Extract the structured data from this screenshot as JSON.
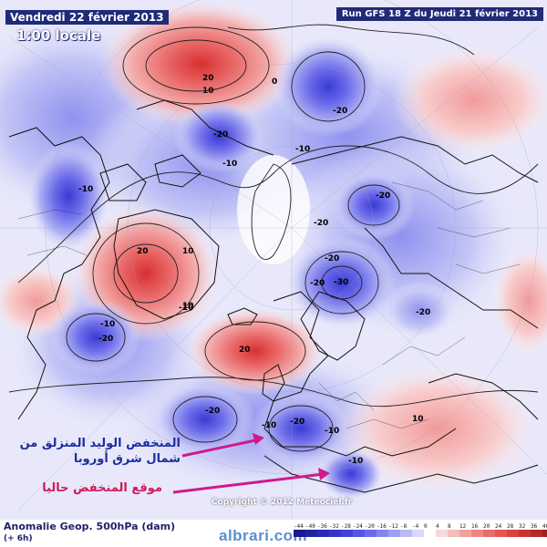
{
  "header": {
    "date": "Vendredi 22 février 2013",
    "time": "1:00 locale",
    "run": "Run GFS 18 Z du Jeudi 21 février 2013"
  },
  "footer": {
    "title": "Anomalie Geop. 500hPa (dam)",
    "subtitle": "(+ 6h)"
  },
  "copyright": "Copyright © 2012 Meteociel.fr",
  "watermark": "albrari.com",
  "annotations": {
    "new_low": "المنخفض الوليد المنزلق من شمال شرق أوروبا",
    "current_low": "موقع المنخفض حاليا",
    "new_low_color": "#1d2ea0",
    "current_low_color": "#d01a5a"
  },
  "legend": {
    "ticks": [
      "-44",
      "-40",
      "-36",
      "-32",
      "-28",
      "-24",
      "-20",
      "-16",
      "-12",
      "-8",
      "-4",
      "0",
      "4",
      "8",
      "12",
      "16",
      "20",
      "24",
      "28",
      "32",
      "36",
      "40"
    ],
    "colors": [
      "#1a1a8a",
      "#22229e",
      "#2a2ab4",
      "#3434c8",
      "#4242d8",
      "#5555e2",
      "#6a6aea",
      "#8585ee",
      "#a0a0f2",
      "#bcbcf5",
      "#d8d8f8",
      "#ffffff",
      "#f8d8d8",
      "#f5bcbc",
      "#f2a0a0",
      "#ee8585",
      "#ea6a6a",
      "#e25555",
      "#d84242",
      "#c83434",
      "#b42a2a",
      "#9e2222"
    ]
  },
  "contour_labels": [
    {
      "name": "pacific-high-label",
      "text": "20",
      "kind": "pos"
    },
    {
      "name": "pacific-high-label-2",
      "text": "10",
      "kind": "pos"
    },
    {
      "name": "north-zero-label",
      "text": "0",
      "kind": "zero"
    },
    {
      "name": "siberia-low-label",
      "text": "-20",
      "kind": "neg"
    },
    {
      "name": "alaska-low-label",
      "text": "-20",
      "kind": "neg"
    },
    {
      "name": "alaska-low-label-2",
      "text": "-10",
      "kind": "neg"
    },
    {
      "name": "arctic-low-label",
      "text": "-10",
      "kind": "neg"
    },
    {
      "name": "canada-low-label",
      "text": "-10",
      "kind": "neg"
    },
    {
      "name": "scandi-low-label",
      "text": "-20",
      "kind": "neg"
    },
    {
      "name": "scandi-low-label-2",
      "text": "-20",
      "kind": "neg"
    },
    {
      "name": "russia-low-label",
      "text": "-20",
      "kind": "neg"
    },
    {
      "name": "russia-low-center",
      "text": "-30",
      "kind": "neg"
    },
    {
      "name": "russia-low-label-2",
      "text": "-20",
      "kind": "neg"
    },
    {
      "name": "greenland-high-label",
      "text": "20",
      "kind": "pos"
    },
    {
      "name": "greenland-high-label-2",
      "text": "10",
      "kind": "pos"
    },
    {
      "name": "greenland-high-label-3",
      "text": "10",
      "kind": "pos"
    },
    {
      "name": "us-low-label",
      "text": "-10",
      "kind": "neg"
    },
    {
      "name": "us-low-label-2",
      "text": "-20",
      "kind": "neg"
    },
    {
      "name": "atlantic-high-label",
      "text": "20",
      "kind": "pos"
    },
    {
      "name": "atlantic-low-label",
      "text": "-20",
      "kind": "neg"
    },
    {
      "name": "atlantic-low-label-2",
      "text": "-10",
      "kind": "neg"
    },
    {
      "name": "europe-low-label",
      "text": "-20",
      "kind": "neg"
    },
    {
      "name": "europe-low-label-2",
      "text": "-10",
      "kind": "neg"
    },
    {
      "name": "med-low-label",
      "text": "-10",
      "kind": "neg"
    },
    {
      "name": "asia-pos-label",
      "text": "10",
      "kind": "pos"
    },
    {
      "name": "east-low-label",
      "text": "-20",
      "kind": "neg"
    },
    {
      "name": "east-low-label-2",
      "text": "-10",
      "kind": "neg"
    }
  ]
}
